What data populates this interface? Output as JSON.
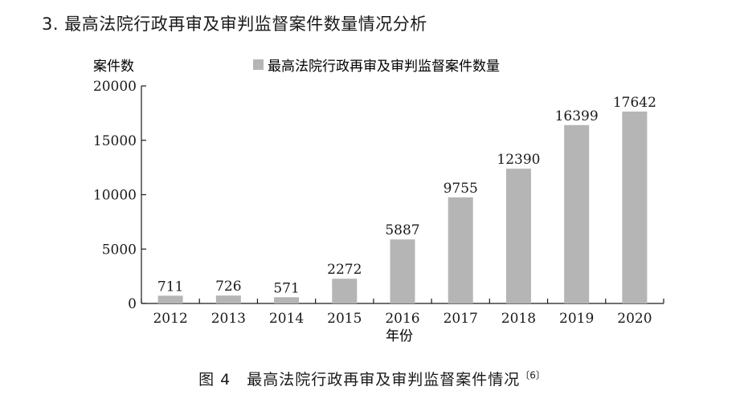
{
  "heading": "3. 最高法院行政再审及审判监督案件数量情况分析",
  "caption": {
    "text": "图 4　最高法院行政再审及审判监督案件情况",
    "ref": "〔6〕"
  },
  "colors": {
    "bar": "#b5b5b5",
    "axis": "#1a1a1a",
    "text": "#1a1a1a"
  },
  "chart_data": {
    "type": "bar",
    "title": "",
    "xlabel": "年份",
    "ylabel": "案件数",
    "legend": "最高法院行政再审及审判监督案件数量",
    "legend_position": "top",
    "grid": false,
    "categories": [
      "2012",
      "2013",
      "2014",
      "2015",
      "2016",
      "2017",
      "2018",
      "2019",
      "2020"
    ],
    "series": [
      {
        "name": "最高法院行政再审及审判监督案件数量",
        "values": [
          711,
          726,
          571,
          2272,
          5887,
          9755,
          12390,
          16399,
          17642
        ]
      }
    ],
    "yticks": [
      "0",
      "5000",
      "10000",
      "15000",
      "20000"
    ],
    "ylim": [
      0,
      20000
    ]
  }
}
